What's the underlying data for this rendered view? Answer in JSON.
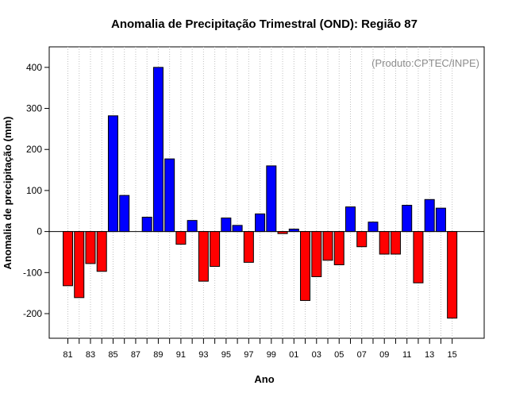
{
  "chart_data": {
    "type": "bar",
    "title": "Anomalia de Precipitação Trimestral (OND): Região 87",
    "xlabel": "Ano",
    "ylabel": "Anomalia de precipitação (mm)",
    "annotation": "(Produto:CPTEC/INPE)",
    "ylim": [
      -260,
      450
    ],
    "yticks": [
      -200,
      -100,
      0,
      100,
      200,
      300,
      400
    ],
    "grid": "vertical dotted",
    "colors": {
      "positive": "#0000ff",
      "negative": "#ff0000"
    },
    "categories": [
      "81",
      "82",
      "83",
      "84",
      "85",
      "86",
      "87",
      "88",
      "89",
      "90",
      "91",
      "92",
      "93",
      "94",
      "95",
      "96",
      "97",
      "98",
      "99",
      "00",
      "01",
      "02",
      "03",
      "04",
      "05",
      "06",
      "07",
      "08",
      "09",
      "10",
      "11",
      "12",
      "13",
      "14",
      "15"
    ],
    "xtick_labels": [
      "81",
      "83",
      "85",
      "87",
      "89",
      "91",
      "93",
      "95",
      "97",
      "99",
      "01",
      "03",
      "05",
      "07",
      "09",
      "11",
      "13",
      "15"
    ],
    "values": [
      -132,
      -161,
      -78,
      -97,
      282,
      88,
      0,
      35,
      400,
      177,
      -31,
      27,
      -121,
      -85,
      33,
      15,
      -75,
      43,
      160,
      -5,
      6,
      -168,
      -110,
      -70,
      -81,
      60,
      -37,
      23,
      -55,
      -55,
      64,
      -125,
      78,
      57,
      -211
    ]
  }
}
